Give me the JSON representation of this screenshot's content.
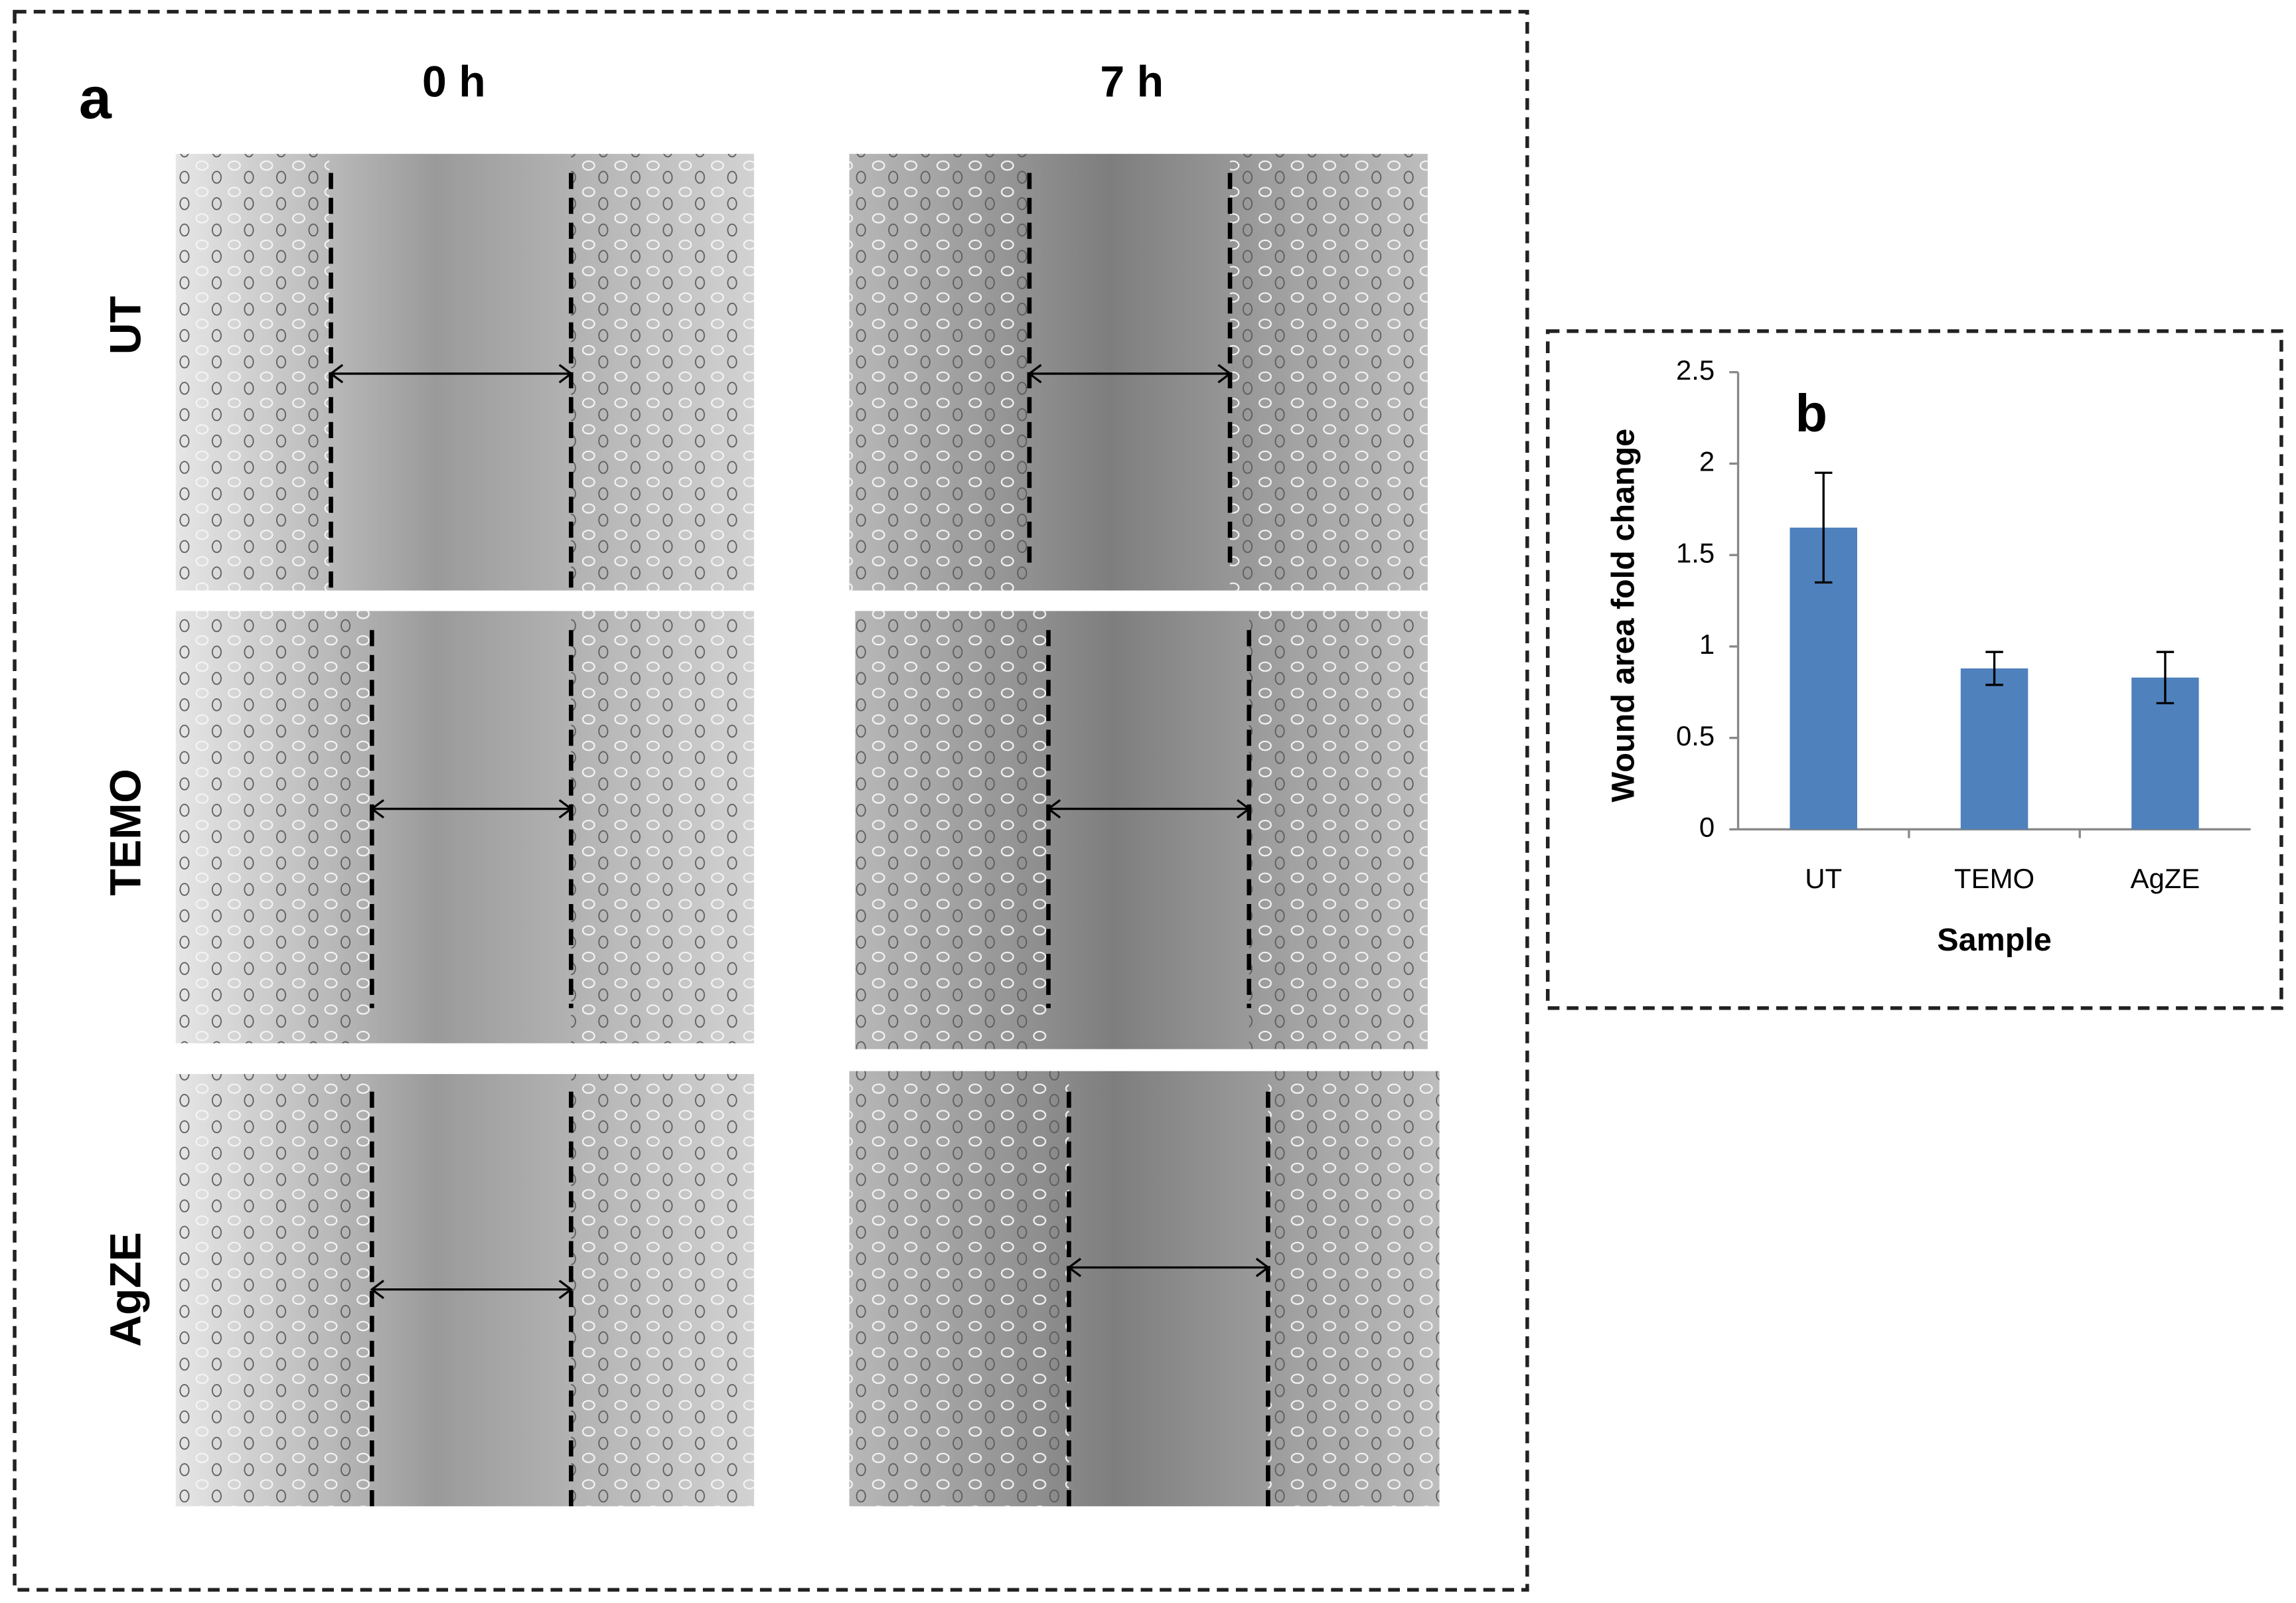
{
  "panel_a": {
    "label": "a",
    "columns": [
      "0 h",
      "7 h"
    ],
    "rows": [
      "UT",
      "TEMO",
      "AgZE"
    ]
  },
  "chart_data": {
    "type": "bar",
    "annotation": "b",
    "x_label": "Sample",
    "y_label": "Wound area fold change",
    "categories": [
      "UT",
      "TEMO",
      "AgZE"
    ],
    "values": [
      1.65,
      0.88,
      0.83
    ],
    "errors": [
      0.3,
      0.09,
      0.14
    ],
    "color": "#4f81bd",
    "ylim": [
      0,
      2.5
    ],
    "yticks": [
      0,
      0.5,
      1,
      1.5,
      2,
      2.5
    ]
  }
}
